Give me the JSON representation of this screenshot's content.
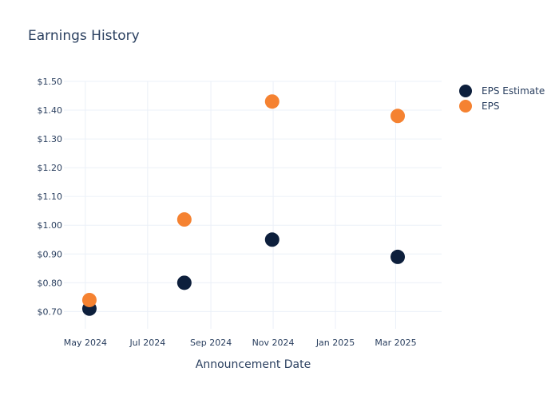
{
  "chart_data": {
    "type": "scatter",
    "title": "Earnings History",
    "xlabel": "Announcement Date",
    "ylabel": "",
    "x_ticks": [
      {
        "date": "2024-05-01",
        "label": "May 2024"
      },
      {
        "date": "2024-07-01",
        "label": "Jul 2024"
      },
      {
        "date": "2024-09-01",
        "label": "Sep 2024"
      },
      {
        "date": "2024-11-01",
        "label": "Nov 2024"
      },
      {
        "date": "2025-01-01",
        "label": "Jan 2025"
      },
      {
        "date": "2025-03-01",
        "label": "Mar 2025"
      }
    ],
    "xlim": [
      "2024-04-10",
      "2025-04-15"
    ],
    "y_ticks": [
      {
        "value": 0.7,
        "label": "$0.70"
      },
      {
        "value": 0.8,
        "label": "$0.80"
      },
      {
        "value": 0.9,
        "label": "$0.90"
      },
      {
        "value": 1.0,
        "label": "$1.00"
      },
      {
        "value": 1.1,
        "label": "$1.10"
      },
      {
        "value": 1.2,
        "label": "$1.20"
      },
      {
        "value": 1.3,
        "label": "$1.30"
      },
      {
        "value": 1.4,
        "label": "$1.40"
      },
      {
        "value": 1.5,
        "label": "$1.50"
      }
    ],
    "ylim": [
      0.64,
      1.5
    ],
    "grid": true,
    "legend_position": "top-right",
    "series": [
      {
        "name": "EPS Estimate",
        "color": "#0d1f3c",
        "points": [
          {
            "x": "2024-05-05",
            "y": 0.71
          },
          {
            "x": "2024-08-06",
            "y": 0.8
          },
          {
            "x": "2024-10-31",
            "y": 0.95
          },
          {
            "x": "2025-03-03",
            "y": 0.89
          }
        ]
      },
      {
        "name": "EPS",
        "color": "#f58231",
        "points": [
          {
            "x": "2024-05-05",
            "y": 0.74
          },
          {
            "x": "2024-08-06",
            "y": 1.02
          },
          {
            "x": "2024-10-31",
            "y": 1.43
          },
          {
            "x": "2025-03-03",
            "y": 1.38
          }
        ]
      }
    ]
  }
}
